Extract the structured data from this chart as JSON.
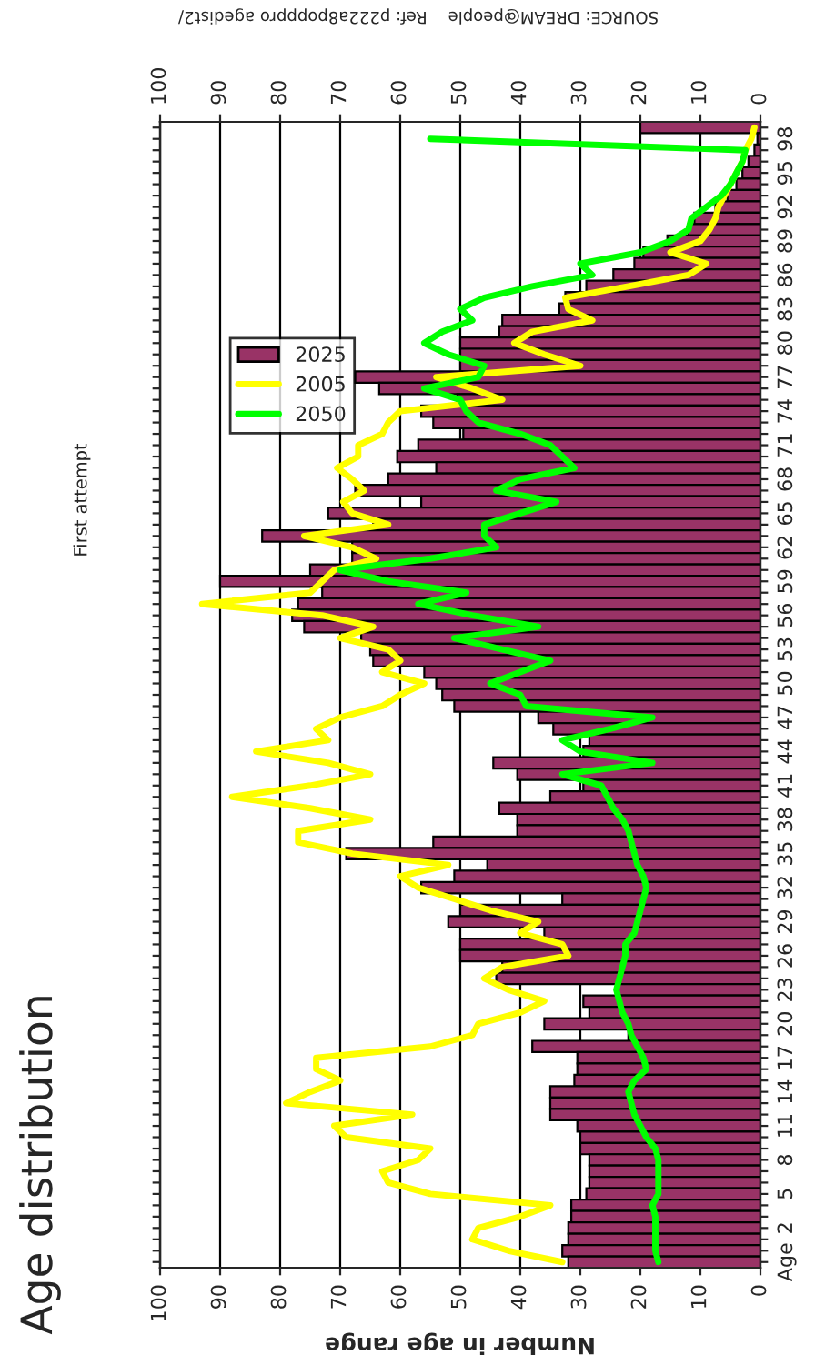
{
  "chart_data": {
    "type": "bar",
    "orientation": "horizontal",
    "title": "Age distribution",
    "subtitle": "First attempt",
    "xlabel": "Number in age range",
    "annotations": [
      "SOURCE: DREAM@people    Ref: p222a8popppro agedist2/"
    ],
    "categories": [
      null,
      "98",
      null,
      null,
      "95",
      null,
      null,
      "92",
      null,
      null,
      "89",
      null,
      null,
      "86",
      null,
      null,
      "83",
      null,
      null,
      "80",
      null,
      null,
      "77",
      null,
      null,
      "74",
      null,
      null,
      "71",
      null,
      null,
      "68",
      null,
      null,
      "65",
      null,
      null,
      "62",
      null,
      null,
      "59",
      null,
      null,
      "56",
      null,
      null,
      "53",
      null,
      null,
      "50",
      null,
      null,
      "47",
      null,
      null,
      "44",
      null,
      null,
      "41",
      null,
      null,
      "38",
      null,
      null,
      "35",
      null,
      null,
      "32",
      null,
      null,
      "29",
      null,
      null,
      "26",
      null,
      null,
      "23",
      null,
      null,
      "20",
      null,
      null,
      "17",
      null,
      null,
      "14",
      null,
      null,
      "11",
      null,
      null,
      "8",
      null,
      null,
      "5",
      null,
      null,
      "2",
      null,
      null,
      "Age"
    ],
    "series": [
      {
        "name": "2025",
        "color": "#993366",
        "values": [
          20,
          0.5,
          1,
          2,
          3,
          4,
          5.5,
          7.5,
          11,
          12,
          15.5,
          19.5,
          21,
          24.5,
          29,
          32.5,
          33.5,
          43,
          43.5,
          50,
          50,
          50,
          67.5,
          63.5,
          50.5,
          56.5,
          54.5,
          49.5,
          57,
          60.5,
          54,
          62,
          67.5,
          56.5,
          72,
          64.5,
          83,
          68,
          68,
          75,
          90,
          73,
          77,
          78,
          76,
          66.5,
          65,
          64.5,
          56,
          54,
          53,
          51,
          37,
          34.5,
          28.5,
          29.5,
          44.5,
          40.5,
          29.5,
          35,
          43.5,
          40.5,
          40.5,
          54.5,
          69,
          45.5,
          51,
          56.5,
          33,
          50,
          52,
          36,
          50,
          50,
          43,
          44,
          24,
          29.5,
          28.5,
          36,
          22,
          38,
          30.5,
          30.5,
          31,
          35,
          35,
          35,
          30.5,
          30,
          30,
          28.5,
          28.5,
          28.5,
          29,
          31.5,
          31.5,
          32,
          32,
          33,
          32
        ]
      },
      {
        "name": "2005",
        "type": "line",
        "color": "#ffff00",
        "values": [
          1,
          1.5,
          2.5,
          3,
          4,
          5,
          6,
          7,
          7.5,
          8.5,
          10,
          15,
          9,
          12,
          22,
          32.5,
          32,
          28,
          38,
          41,
          36,
          30,
          54,
          48,
          43,
          60,
          62,
          63,
          67,
          67,
          70.5,
          68,
          66,
          69.5,
          68,
          62,
          76,
          68,
          64,
          71,
          73,
          75,
          93,
          73,
          64.5,
          70,
          62,
          60,
          63,
          56,
          60,
          63,
          70,
          74,
          72,
          84,
          72,
          65,
          75,
          88,
          75,
          65,
          77,
          77,
          68,
          52,
          60,
          57,
          51,
          45,
          37,
          40,
          33,
          32,
          43,
          46,
          42,
          36,
          40,
          47,
          48,
          55,
          74,
          74,
          70,
          75,
          79,
          58,
          71,
          69,
          55,
          57,
          63,
          62,
          55,
          35,
          40,
          47,
          48,
          42,
          33
        ]
      },
      {
        "name": "2050",
        "type": "line",
        "color": "#00ff00",
        "values": [
          null,
          55,
          2.5,
          3,
          4,
          5,
          6.5,
          9,
          11.5,
          12,
          15,
          20,
          30,
          28,
          38,
          46,
          50,
          48,
          53,
          56,
          52,
          46,
          47,
          56,
          50,
          49,
          47,
          40,
          35,
          33,
          31,
          40,
          44,
          34,
          40,
          46,
          46,
          44,
          55,
          70,
          62,
          49,
          57,
          48,
          37,
          51,
          43,
          35,
          40,
          45,
          40,
          39,
          18,
          25,
          33,
          30,
          18,
          33,
          26.5,
          25.5,
          24.5,
          23,
          22,
          21.5,
          21,
          20.5,
          19.5,
          19,
          19.5,
          20,
          20.5,
          21,
          22.5,
          22.5,
          23,
          23.5,
          24,
          23.5,
          23,
          22,
          21.5,
          20.5,
          19.5,
          19,
          21,
          22,
          21.5,
          21,
          20,
          19,
          17.5,
          17,
          17,
          17,
          17,
          18,
          17.5,
          17.5,
          17.5,
          17.5,
          17
        ]
      }
    ],
    "xlim": [
      100,
      0
    ],
    "xticks": [
      0,
      10,
      20,
      30,
      40,
      50,
      60,
      70,
      80,
      90,
      100
    ],
    "x2lim": [
      100,
      0
    ],
    "x2ticks": [
      0,
      10,
      20,
      30,
      40,
      50,
      60,
      70,
      80,
      90,
      100
    ],
    "grid": "x",
    "legend": "top left",
    "line_style": "solid",
    "marker": "none"
  }
}
